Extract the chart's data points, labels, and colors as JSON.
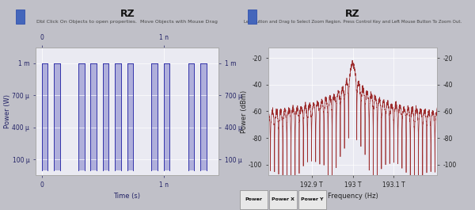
{
  "left_title": "RZ",
  "left_subtitle": "Dbl Click On Objects to open properties.  Move Objects with Mouse Drag",
  "left_xlabel": "Time (s)",
  "left_ylabel": "Power (W)",
  "left_yticks_labels": [
    "100 μ",
    "400 μ",
    "700 μ",
    "1 m"
  ],
  "left_ytick_vals": [
    0.0001,
    0.0004,
    0.0007,
    0.001
  ],
  "left_ylim": [
    -5e-05,
    0.00115
  ],
  "left_xlim": [
    -5e-11,
    1.45e-09
  ],
  "left_xticks": [
    0,
    1e-09
  ],
  "left_xtick_labels": [
    "0",
    "1 n"
  ],
  "left_line_color": "#3333aa",
  "left_fill_color": "#8888cc",
  "left_bg_color": "#eaeaf2",
  "right_title": "RZ",
  "right_subtitle": "Left Button and Drag to Select Zoom Region. Press Control Key and Left Mouse Button To Zoom Out.",
  "right_xlabel": "Frequency (Hz)",
  "right_ylabel": "Power (dBm)",
  "right_yticks": [
    -100,
    -80,
    -60,
    -40,
    -20
  ],
  "right_ylim": [
    -108,
    -12
  ],
  "right_xlim": [
    192795000000000.0,
    193205000000000.0
  ],
  "right_xticks": [
    192900000000000.0,
    193000000000000.0,
    193100000000000.0
  ],
  "right_xtick_labels": [
    "192.9 T",
    "193 T",
    "193.1 T"
  ],
  "right_line_color": "#992222",
  "right_bg_color": "#eaeaf2",
  "outer_bg": "#c0c0c8",
  "bottom_tabs": [
    "Power",
    "Power X",
    "Power Y"
  ]
}
